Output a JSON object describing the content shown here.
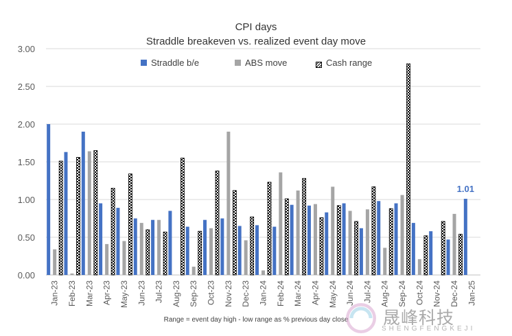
{
  "chart_data": {
    "type": "bar",
    "title": "CPI days",
    "subtitle": "Straddle breakeven vs. realized event day move",
    "categories": [
      "Jan-23",
      "Feb-23",
      "Mar-23",
      "Apr-23",
      "May-23",
      "Jun-23",
      "Jul-23",
      "Aug-23",
      "Sep-23",
      "Oct-23",
      "Nov-23",
      "Dec-23",
      "Jan-24",
      "Feb-24",
      "Mar-24",
      "Apr-24",
      "May-24",
      "Jun-24",
      "Jul-24",
      "Aug-24",
      "Sep-24",
      "Oct-24",
      "Nov-24",
      "Dec-24",
      "Jan-25"
    ],
    "series": [
      {
        "name": "Straddle b/e",
        "color": "#4472C4",
        "values": [
          2.0,
          1.63,
          1.9,
          0.95,
          0.89,
          0.75,
          0.73,
          0.85,
          0.64,
          0.73,
          0.75,
          0.65,
          0.66,
          0.64,
          0.93,
          0.92,
          0.83,
          0.95,
          0.62,
          0.98,
          0.95,
          0.69,
          0.58,
          0.47,
          1.01
        ]
      },
      {
        "name": "ABS move",
        "color": "#A5A5A5",
        "values": [
          0.34,
          0.02,
          1.64,
          0.41,
          0.45,
          0.69,
          0.73,
          0.0,
          0.11,
          0.62,
          1.9,
          0.46,
          0.06,
          1.36,
          1.12,
          0.94,
          1.17,
          0.85,
          0.87,
          0.36,
          1.06,
          0.21,
          0.0,
          0.81,
          null
        ]
      },
      {
        "name": "Cash range",
        "pattern": "checker",
        "values": [
          1.51,
          1.56,
          1.65,
          1.15,
          1.34,
          0.6,
          0.57,
          1.55,
          0.58,
          1.38,
          1.12,
          0.77,
          1.23,
          1.01,
          1.28,
          0.76,
          0.92,
          0.71,
          1.17,
          0.88,
          2.8,
          0.52,
          0.71,
          0.54,
          null
        ]
      }
    ],
    "ylim": [
      0,
      3
    ],
    "yticks": [
      "0.00",
      "0.50",
      "1.00",
      "1.50",
      "2.00",
      "2.50",
      "3.00"
    ],
    "grid": true,
    "legend_position": "top-center",
    "annotations": [
      {
        "label": "1.01",
        "series": "Straddle b/e",
        "category": "Jan-25"
      }
    ],
    "footnote": "Range = event day high - low range as % previous day close"
  },
  "watermark": {
    "text": "晟峰科技",
    "sub": "SHENGFENGKEJI"
  }
}
